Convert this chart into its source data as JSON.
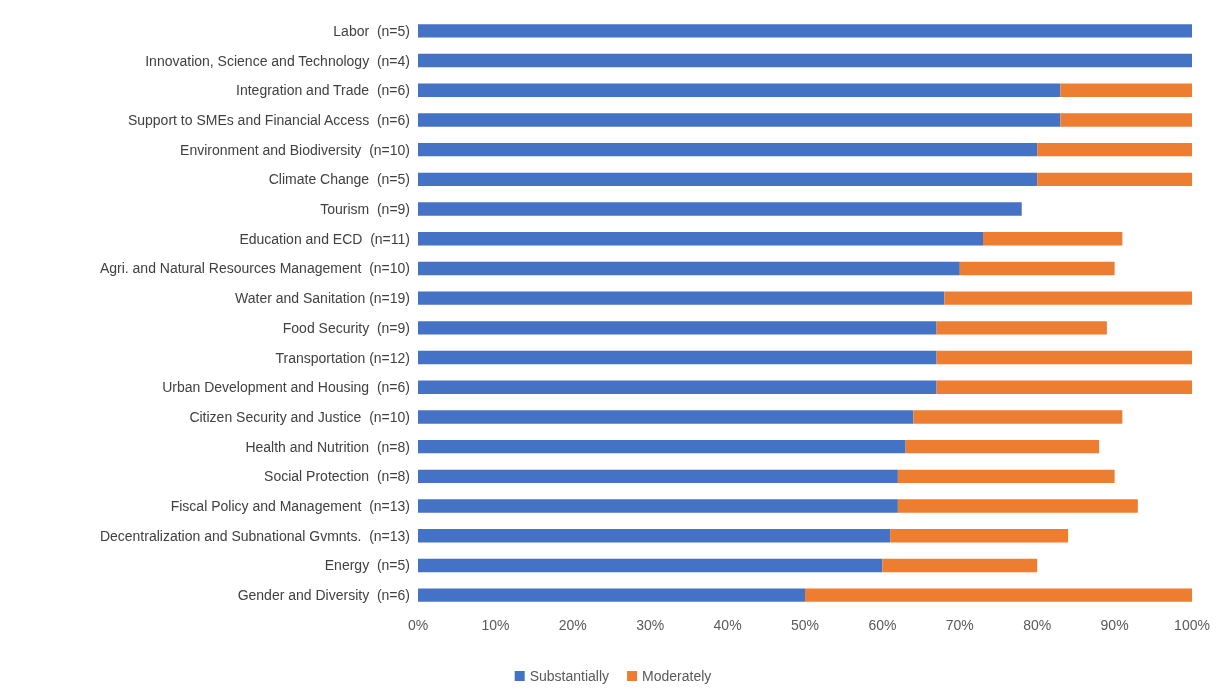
{
  "chart_data": {
    "type": "bar",
    "orientation": "horizontal",
    "stacked": true,
    "categories": [
      "Labor  (n=5)",
      "Innovation, Science and Technology  (n=4)",
      "Integration and Trade  (n=6)",
      "Support to SMEs and Financial Access  (n=6)",
      "Environment and Biodiversity  (n=10)",
      "Climate Change  (n=5)",
      "Tourism  (n=9)",
      "Education and ECD  (n=11)",
      "Agri. and Natural Resources Management  (n=10)",
      "Water and Sanitation (n=19)",
      "Food Security  (n=9)",
      "Transportation (n=12)",
      "Urban Development and Housing  (n=6)",
      "Citizen Security and Justice  (n=10)",
      "Health and Nutrition  (n=8)",
      "Social Protection  (n=8)",
      "Fiscal Policy and Management  (n=13)",
      "Decentralization and Subnational Gvmnts.  (n=13)",
      "Energy  (n=5)",
      "Gender and Diversity  (n=6)"
    ],
    "series": [
      {
        "name": "Substantially",
        "color": "#4472c4",
        "values": [
          100,
          100,
          83,
          83,
          80,
          80,
          78,
          73,
          70,
          68,
          67,
          67,
          67,
          64,
          63,
          62,
          62,
          61,
          60,
          50
        ]
      },
      {
        "name": "Moderately",
        "color": "#ed7d31",
        "values": [
          0,
          0,
          17,
          17,
          20,
          20,
          0,
          18,
          20,
          32,
          22,
          33,
          33,
          27,
          25,
          28,
          31,
          23,
          20,
          50
        ]
      }
    ],
    "xlim": [
      0,
      100
    ],
    "xticks": [
      {
        "value": 0,
        "label": "0%"
      },
      {
        "value": 10,
        "label": "10%"
      },
      {
        "value": 20,
        "label": "20%"
      },
      {
        "value": 30,
        "label": "30%"
      },
      {
        "value": 40,
        "label": "40%"
      },
      {
        "value": 50,
        "label": "50%"
      },
      {
        "value": 60,
        "label": "60%"
      },
      {
        "value": 70,
        "label": "70%"
      },
      {
        "value": 80,
        "label": "80%"
      },
      {
        "value": 90,
        "label": "90%"
      },
      {
        "value": 100,
        "label": "100%"
      }
    ],
    "grid": false,
    "legend": "bottom"
  }
}
